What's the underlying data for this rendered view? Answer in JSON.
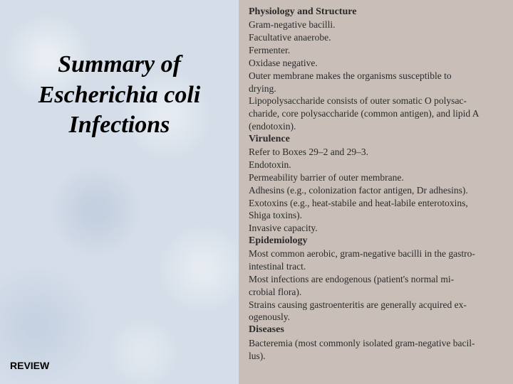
{
  "left": {
    "title_line1": "Summary of",
    "title_line2": "Escherichia coli",
    "title_line3": "Infections",
    "footer": "REVIEW"
  },
  "doc": {
    "sections": [
      {
        "heading": "Physiology and Structure",
        "lines": [
          {
            "indent": 1,
            "text": "Gram-negative bacilli."
          },
          {
            "indent": 2,
            "text": "Facultative anaerobe."
          },
          {
            "indent": 2,
            "text": "Fermenter."
          },
          {
            "indent": 2,
            "text": "Oxidase negative."
          },
          {
            "indent": 2,
            "text": "Outer membrane makes the organisms susceptible to"
          },
          {
            "indent": 1,
            "text": "drying."
          },
          {
            "indent": 2,
            "text": "Lipopolysaccharide consists of outer somatic O polysac-"
          },
          {
            "indent": 1,
            "text": "charide, core polysaccharide (common antigen), and lipid A"
          },
          {
            "indent": 1,
            "text": "(endotoxin)."
          }
        ]
      },
      {
        "heading": "Virulence",
        "lines": [
          {
            "indent": 1,
            "text": "Refer to Boxes 29–2 and 29–3."
          },
          {
            "indent": 2,
            "text": "Endotoxin."
          },
          {
            "indent": 2,
            "text": "Permeability barrier of outer membrane."
          },
          {
            "indent": 2,
            "text": "Adhesins (e.g., colonization factor antigen, Dr adhesins)."
          },
          {
            "indent": 2,
            "text": "Exotoxins (e.g., heat-stabile and heat-labile enterotoxins,"
          },
          {
            "indent": 1,
            "text": "Shiga toxins)."
          },
          {
            "indent": 2,
            "text": "Invasive capacity."
          }
        ]
      },
      {
        "heading": "Epidemiology",
        "lines": [
          {
            "indent": 1,
            "text": "Most common aerobic, gram-negative bacilli in the gastro-"
          },
          {
            "indent": 1,
            "text": "intestinal tract."
          },
          {
            "indent": 2,
            "text": "Most infections are endogenous (patient's normal mi-"
          },
          {
            "indent": 1,
            "text": "crobial flora)."
          },
          {
            "indent": 2,
            "text": "Strains causing gastroenteritis are generally acquired ex-"
          },
          {
            "indent": 1,
            "text": "ogenously."
          }
        ]
      },
      {
        "heading": "Diseases",
        "lines": [
          {
            "indent": 1,
            "text": "Bacteremia (most commonly isolated gram-negative bacil-"
          },
          {
            "indent": 1,
            "text": "lus)."
          }
        ]
      }
    ]
  },
  "style": {
    "left_bg": "#d4dde8",
    "right_bg": "#c9bfb8",
    "title_fontsize": 34,
    "body_fontsize": 13.5
  }
}
